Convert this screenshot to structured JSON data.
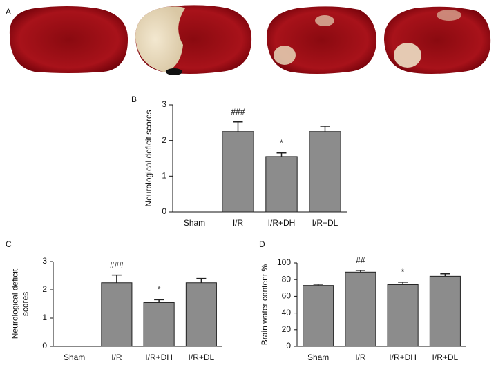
{
  "panel_a": {
    "label": "A"
  },
  "chart_data": [
    {
      "type": "bar",
      "panel_label": "B",
      "ylabel": [
        "Neurological deficit scores"
      ],
      "categories": [
        "Sham",
        "I/R",
        "I/R+DH",
        "I/R+DL"
      ],
      "values": [
        0,
        2.25,
        1.55,
        2.25
      ],
      "errors": [
        0,
        0.27,
        0.1,
        0.15
      ],
      "annotations": [
        null,
        "###",
        "*",
        null
      ],
      "color": "#8c8c8c",
      "ylim": [
        0,
        3
      ],
      "yticks": [
        0,
        1,
        2,
        3
      ]
    },
    {
      "type": "bar",
      "panel_label": "C",
      "ylabel": [
        "Neurological deficit",
        "scores"
      ],
      "categories": [
        "Sham",
        "I/R",
        "I/R+DH",
        "I/R+DL"
      ],
      "values": [
        0,
        2.25,
        1.55,
        2.25
      ],
      "errors": [
        0,
        0.27,
        0.1,
        0.15
      ],
      "annotations": [
        null,
        "###",
        "*",
        null
      ],
      "color": "#8c8c8c",
      "ylim": [
        0,
        3
      ],
      "yticks": [
        0,
        1,
        2,
        3
      ]
    },
    {
      "type": "bar",
      "panel_label": "D",
      "ylabel": [
        "Brain water content %"
      ],
      "categories": [
        "Sham",
        "I/R",
        "I/R+DH",
        "I/R+DL"
      ],
      "values": [
        73,
        89,
        74,
        84
      ],
      "errors": [
        1.5,
        2,
        3,
        3
      ],
      "annotations": [
        null,
        "##",
        "*",
        null
      ],
      "color": "#8c8c8c",
      "ylim": [
        0,
        100
      ],
      "yticks": [
        0,
        20,
        40,
        60,
        80,
        100
      ]
    }
  ]
}
